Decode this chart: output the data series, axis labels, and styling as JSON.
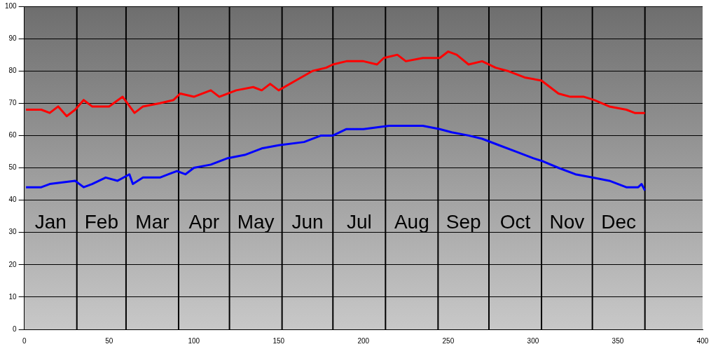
{
  "chart_data": {
    "type": "line",
    "xlim": [
      0,
      400
    ],
    "xticks": [
      0,
      50,
      100,
      150,
      200,
      250,
      300,
      350,
      400
    ],
    "ylim": [
      0,
      100
    ],
    "yticks": [
      0,
      10,
      20,
      30,
      40,
      50,
      60,
      70,
      80,
      90,
      100
    ],
    "grid": "y",
    "legend": false,
    "marker": "none",
    "line_style": "solid",
    "series": [
      {
        "color": "#ff0000",
        "x": [
          1,
          10,
          15,
          20,
          25,
          30,
          35,
          40,
          50,
          58,
          65,
          70,
          80,
          88,
          92,
          100,
          110,
          115,
          125,
          135,
          140,
          145,
          150,
          160,
          170,
          178,
          182,
          190,
          200,
          208,
          212,
          220,
          225,
          235,
          245,
          250,
          255,
          262,
          270,
          278,
          285,
          295,
          305,
          315,
          322,
          330,
          336,
          345,
          355,
          360,
          366
        ],
        "values": [
          68,
          68,
          67,
          69,
          66,
          68,
          71,
          69,
          69,
          72,
          67,
          69,
          70,
          71,
          73,
          72,
          74,
          72,
          74,
          75,
          74,
          76,
          74,
          77,
          80,
          81,
          82,
          83,
          83,
          82,
          84,
          85,
          83,
          84,
          84,
          86,
          85,
          82,
          83,
          81,
          80,
          78,
          77,
          73,
          72,
          72,
          71,
          69,
          68,
          67,
          67
        ]
      },
      {
        "color": "#0000ff",
        "x": [
          1,
          10,
          15,
          30,
          35,
          40,
          48,
          55,
          62,
          64,
          70,
          80,
          85,
          90,
          95,
          100,
          110,
          120,
          130,
          140,
          150,
          165,
          175,
          182,
          190,
          200,
          215,
          225,
          235,
          245,
          252,
          262,
          270,
          280,
          290,
          300,
          306,
          315,
          325,
          335,
          345,
          355,
          362,
          364,
          366
        ],
        "values": [
          44,
          44,
          45,
          46,
          44,
          45,
          47,
          46,
          48,
          45,
          47,
          47,
          48,
          49,
          48,
          50,
          51,
          53,
          54,
          56,
          57,
          58,
          60,
          60,
          62,
          62,
          63,
          63,
          63,
          62,
          61,
          60,
          59,
          57,
          55,
          53,
          52,
          50,
          48,
          47,
          46,
          44,
          44,
          45,
          43
        ]
      }
    ],
    "ref_lines": [
      {
        "axis": "x",
        "value": 31,
        "color": "#000000"
      },
      {
        "axis": "x",
        "value": 60,
        "color": "#000000"
      },
      {
        "axis": "x",
        "value": 91,
        "color": "#000000"
      },
      {
        "axis": "x",
        "value": 121,
        "color": "#000000"
      },
      {
        "axis": "x",
        "value": 152,
        "color": "#000000"
      },
      {
        "axis": "x",
        "value": 182,
        "color": "#000000"
      },
      {
        "axis": "x",
        "value": 213,
        "color": "#000000"
      },
      {
        "axis": "x",
        "value": 244,
        "color": "#000000"
      },
      {
        "axis": "x",
        "value": 274,
        "color": "#000000"
      },
      {
        "axis": "x",
        "value": 305,
        "color": "#000000"
      },
      {
        "axis": "x",
        "value": 335,
        "color": "#000000"
      },
      {
        "axis": "x",
        "value": 366,
        "color": "#000000"
      }
    ],
    "annotations": [
      "Jan",
      "Feb",
      "Mar",
      "Apr",
      "May",
      "Jun",
      "Jul",
      "Aug",
      "Sep",
      "Oct",
      "Nov",
      "Dec"
    ]
  }
}
